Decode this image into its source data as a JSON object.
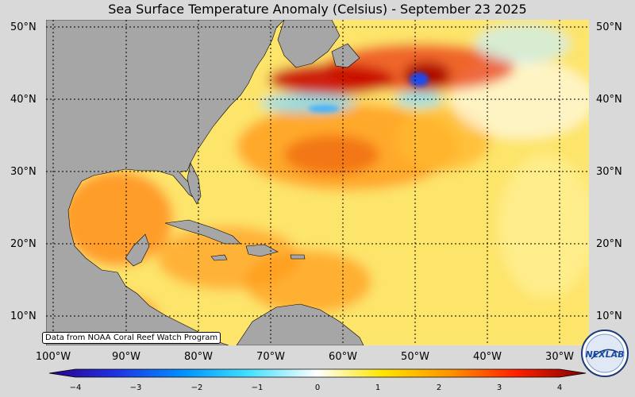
{
  "title": "Sea Surface Temperature Anomaly (Celsius) - September 23 2025",
  "credit": "Data from NOAA Coral Reef Watch Program",
  "lat_labels": [
    "50°N",
    "40°N",
    "30°N",
    "20°N",
    "10°N"
  ],
  "lon_labels": [
    "100°W",
    "90°W",
    "80°W",
    "70°W",
    "60°W",
    "50°W",
    "40°W",
    "30°W"
  ],
  "colorbar": {
    "ticks": [
      "−4",
      "−3",
      "−2",
      "−1",
      "0",
      "1",
      "2",
      "3",
      "4"
    ],
    "range": [
      -4,
      4
    ]
  },
  "logo": {
    "text": "NEXLAB"
  },
  "colors": {
    "land": "#a6a6a6",
    "ocean_warm": "#ffb000",
    "ocean_hot": "#d00000",
    "ocean_cold": "#2aa0ff"
  }
}
